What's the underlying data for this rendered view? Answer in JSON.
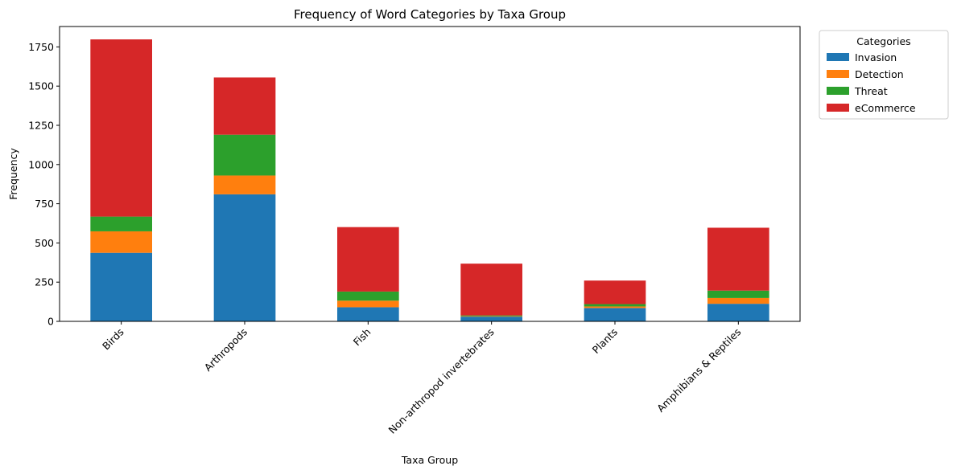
{
  "chart_data": {
    "type": "bar",
    "stacked": true,
    "title": "Frequency of Word Categories by Taxa Group",
    "xlabel": "Taxa Group",
    "ylabel": "Frequency",
    "categories": [
      "Birds",
      "Arthropods",
      "Fish",
      "Non-arthropod invertebrates",
      "Plants",
      "Amphibians & Reptiles"
    ],
    "series": [
      {
        "name": "Invasion",
        "color": "#1f77b4",
        "values": [
          437,
          810,
          90,
          30,
          85,
          112
        ]
      },
      {
        "name": "Detection",
        "color": "#ff7f0e",
        "values": [
          137,
          120,
          42,
          3,
          10,
          37
        ]
      },
      {
        "name": "Threat",
        "color": "#2ca02c",
        "values": [
          94,
          260,
          58,
          5,
          15,
          47
        ]
      },
      {
        "name": "eCommerce",
        "color": "#d62728",
        "values": [
          1130,
          365,
          411,
          330,
          150,
          401
        ]
      }
    ],
    "ylim": [
      0,
      1880
    ],
    "yticks": [
      0,
      250,
      500,
      750,
      1000,
      1250,
      1500,
      1750
    ],
    "legend_title": "Categories",
    "legend_position": "outside top-right",
    "grid": false
  }
}
